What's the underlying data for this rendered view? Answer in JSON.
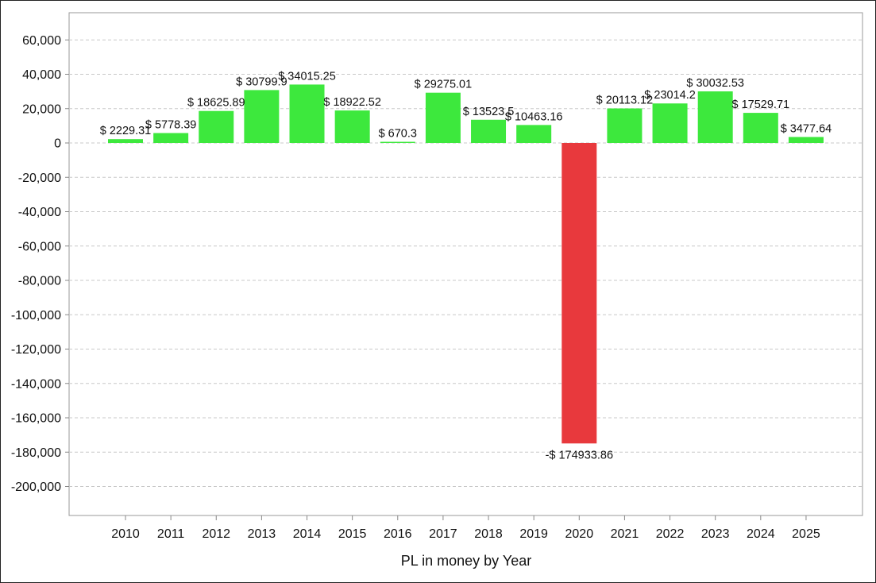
{
  "chart_data": {
    "type": "bar",
    "xlabel": "PL in money by Year",
    "ylabel": "",
    "ylim": [
      -215000,
      75000
    ],
    "yticks": [
      60000,
      40000,
      20000,
      0,
      -20000,
      -40000,
      -60000,
      -80000,
      -100000,
      -120000,
      -140000,
      -160000,
      -180000,
      -200000
    ],
    "ytick_labels": [
      "60,000",
      "40,000",
      "20,000",
      "0",
      "-20,000",
      "-40,000",
      "-60,000",
      "-80,000",
      "-100,000",
      "-120,000",
      "-140,000",
      "-160,000",
      "-180,000",
      "-200,000"
    ],
    "grid": true,
    "categories": [
      "2010",
      "2011",
      "2012",
      "2013",
      "2014",
      "2015",
      "2016",
      "2017",
      "2018",
      "2019",
      "2020",
      "2021",
      "2022",
      "2023",
      "2024",
      "2025"
    ],
    "values": [
      2229.31,
      5778.39,
      18625.89,
      30799.9,
      34015.25,
      18922.52,
      670.3,
      29275.01,
      13523.5,
      10463.16,
      -174933.86,
      20113.12,
      23014.2,
      30032.53,
      17529.71,
      3477.64
    ],
    "data_labels": [
      "$ 2229.31",
      "$ 5778.39",
      "$ 18625.89",
      "$ 30799.9",
      "$ 34015.25",
      "$ 18922.52",
      "$ 670.3",
      "$ 29275.01",
      "$ 13523.5",
      "$ 10463.16",
      "-$ 174933.86",
      "$ 20113.12",
      "$ 23014.2",
      "$ 30032.53",
      "$ 17529.71",
      "$ 3477.64"
    ],
    "colors": {
      "positive": "#3de83d",
      "negative": "#e8393d",
      "grid": "#c8c8c8",
      "axis": "#888888"
    }
  }
}
